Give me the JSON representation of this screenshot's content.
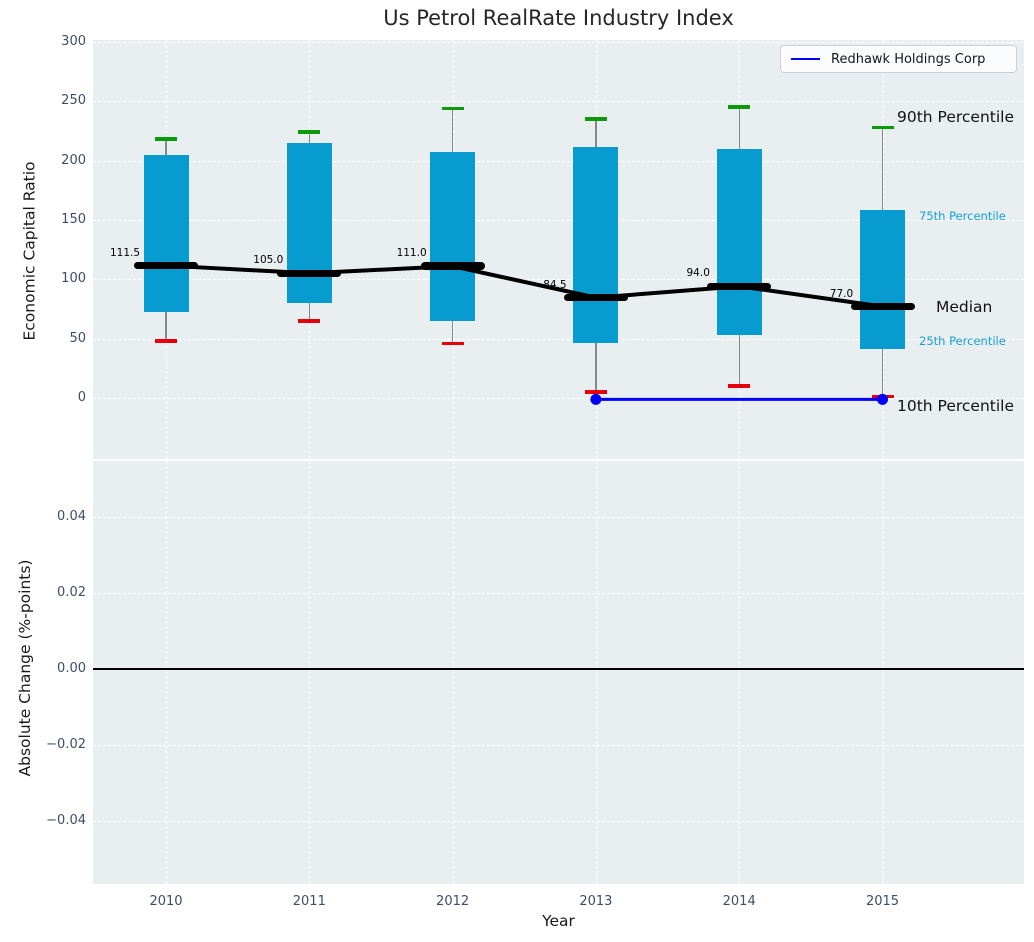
{
  "title": "Us Petrol RealRate Industry Index",
  "legend": {
    "label": "Redhawk Holdings Corp",
    "line_color": "#0000ff"
  },
  "axes": {
    "xlabel": "Year",
    "xticks": [
      "2010",
      "2011",
      "2012",
      "2013",
      "2014",
      "2015"
    ],
    "top": {
      "ylabel": "Economic Capital Ratio",
      "yticks": [
        "300",
        "250",
        "200",
        "150",
        "100",
        "50",
        "0"
      ]
    },
    "bottom": {
      "ylabel": "Absolute Change (%-points)",
      "yticks": [
        "0.04",
        "0.02",
        "0.00",
        "−0.02",
        "−0.04"
      ]
    }
  },
  "side_labels": {
    "p90": "90th Percentile",
    "p75": "75th Percentile",
    "median": "Median",
    "p25": "25th Percentile",
    "p10": "10th Percentile"
  },
  "colors": {
    "box": "#089bd0",
    "p90_cap": "#0a9a0a",
    "p10_cap": "#e6000a",
    "median_line": "#000000",
    "overlay_line": "#0000ff",
    "axes_bg": "#e9eef0",
    "grid": "#ffffff",
    "tick_label": "#3e4d66",
    "percentile_label": "#169fd6"
  },
  "chart_data": [
    {
      "type": "box",
      "panel": "top",
      "title": "Us Petrol RealRate Industry Index",
      "xlabel": "Year",
      "ylabel": "Economic Capital Ratio",
      "categories": [
        2010,
        2011,
        2012,
        2013,
        2014,
        2015
      ],
      "ylim": [
        -52,
        301
      ],
      "yticks": [
        300,
        250,
        200,
        150,
        100,
        50,
        0
      ],
      "grid": true,
      "legend_position": "upper right",
      "series": [
        {
          "name": "90th Percentile",
          "values": [
            218,
            224,
            244,
            235,
            245,
            228
          ]
        },
        {
          "name": "75th Percentile",
          "values": [
            205,
            215,
            207,
            211,
            210,
            158
          ]
        },
        {
          "name": "Median",
          "values": [
            111.5,
            105.0,
            111.0,
            84.5,
            94.0,
            77.0
          ]
        },
        {
          "name": "25th Percentile",
          "values": [
            72,
            80,
            65,
            46,
            53,
            41
          ]
        },
        {
          "name": "10th Percentile",
          "values": [
            48,
            65,
            46,
            5,
            10,
            1
          ]
        }
      ],
      "median_labels": [
        "111.5",
        "105.0",
        "111.0",
        "84.5",
        "94.0",
        "77.0"
      ],
      "overlay_line": {
        "name": "Redhawk Holdings Corp",
        "x": [
          2013,
          2015
        ],
        "values": [
          0,
          0
        ],
        "markers": true
      }
    },
    {
      "type": "line",
      "panel": "bottom",
      "xlabel": "Year",
      "ylabel": "Absolute Change (%-points)",
      "x": [],
      "values": [],
      "ylim": [
        -0.057,
        0.055
      ],
      "yticks": [
        0.04,
        0.02,
        0.0,
        -0.02,
        -0.04
      ],
      "zero_line": true,
      "grid": true
    }
  ]
}
